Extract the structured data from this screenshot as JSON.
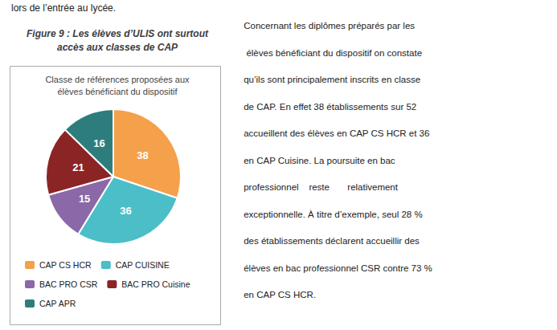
{
  "chart_data": {
    "type": "pie",
    "title": "Figure 9 : Les élèves d’ULIS ont surtout\naccès aux classes de CAP",
    "subtitle": "Classe de références proposées aux\nélèves bénéficiant du dispositif",
    "categories": [
      "CAP CS HCR",
      "CAP CUISINE",
      "BAC PRO CSR",
      "BAC PRO Cuisine",
      "CAP APR"
    ],
    "values": [
      38,
      36,
      15,
      21,
      16
    ],
    "colors": [
      "#F5A04A",
      "#4BBEC8",
      "#8B68A8",
      "#8B2525",
      "#2E7D7D"
    ],
    "data_labels": true,
    "legend": "bottom",
    "annotations": [
      "lors de l’entrée au lycée.",
      " Concernant les diplômes préparés par les",
      "  élèves bénéficiant du dispositif on constate",
      " qu’ils sont principalement inscrits en classe",
      " de CAP. En effet 38 établissements sur 52",
      " accueillent des élèves en CAP CS HCR et 36",
      " en CAP Cuisine. La poursuite en bac",
      " professionnel    reste       relativement",
      " exceptionnelle. À titre d’exemple, seul 28 %",
      " des établissements déclarent accueillir des",
      " élèves en bac professionnel CSR contre 73 %",
      " en CAP CS HCR."
    ]
  }
}
